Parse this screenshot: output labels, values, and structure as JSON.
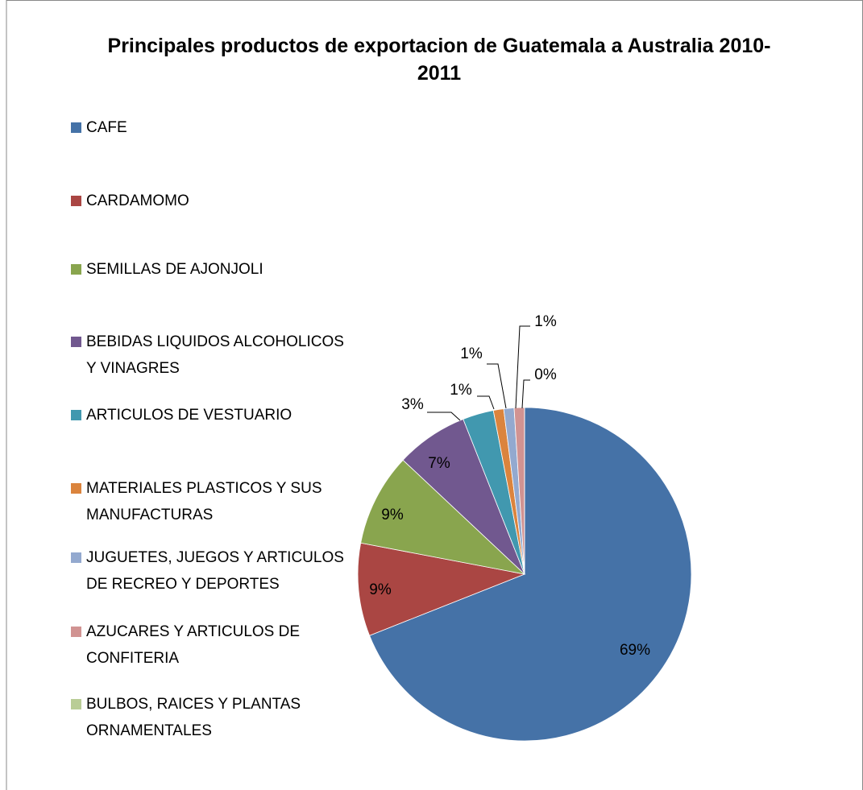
{
  "chart_data": {
    "type": "pie",
    "title": "Principales productos de exportacion  de Guatemala a Australia 2010-2011",
    "categories": [
      "CAFE",
      "CARDAMOMO",
      "SEMILLAS DE AJONJOLI",
      "BEBIDAS LIQUIDOS ALCOHOLICOS Y VINAGRES",
      "ARTICULOS DE VESTUARIO",
      "MATERIALES PLASTICOS Y SUS MANUFACTURAS",
      "JUGUETES, JUEGOS Y ARTICULOS DE RECREO Y DEPORTES",
      "AZUCARES Y ARTICULOS DE CONFITERIA",
      "BULBOS, RAICES Y PLANTAS ORNAMENTALES"
    ],
    "values": [
      69,
      9,
      9,
      7,
      3,
      1,
      1,
      1,
      0
    ],
    "value_labels": [
      "69%",
      "9%",
      "9%",
      "7%",
      "3%",
      "1%",
      "1%",
      "1%",
      "0%"
    ],
    "colors": [
      "#4572a7",
      "#aa4643",
      "#89a54e",
      "#71588f",
      "#4198af",
      "#db843d",
      "#93a9cf",
      "#d19392",
      "#b9cd96"
    ],
    "legend": "left"
  }
}
